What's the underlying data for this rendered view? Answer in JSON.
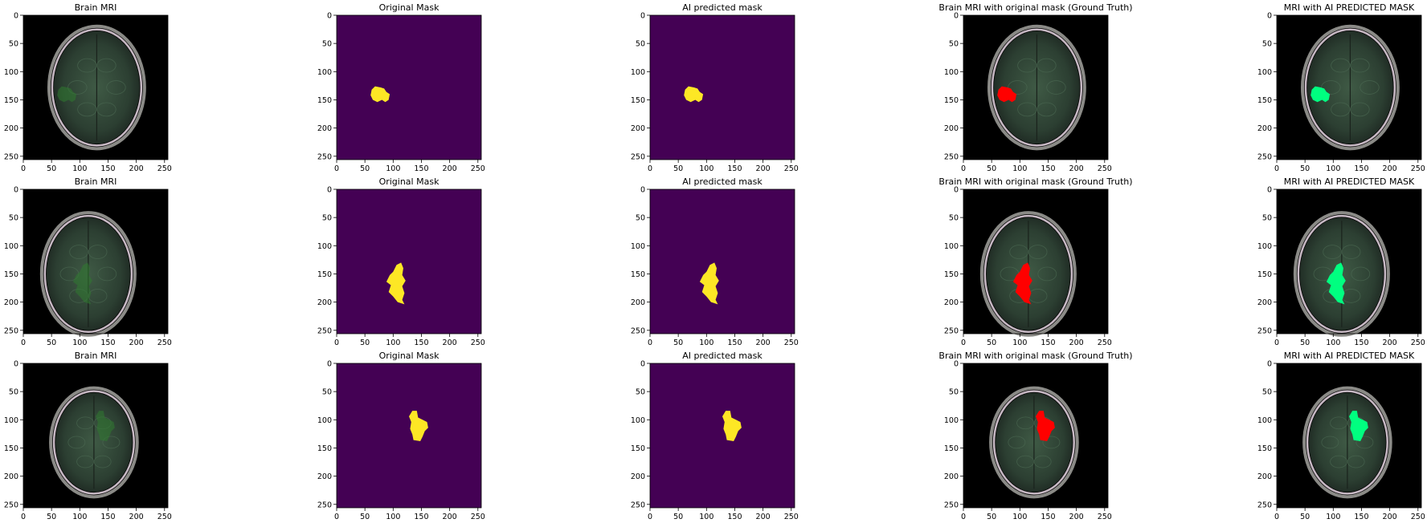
{
  "figure": {
    "axis_ticks": [
      "0",
      "50",
      "100",
      "150",
      "200",
      "250"
    ],
    "image_size": 256,
    "colors": {
      "background": "#000000",
      "mask_background": "#440154",
      "mask_foreground": "#fde725",
      "ground_truth_overlay": "#ff0000",
      "predicted_overlay": "#00ff80",
      "mri_tumor_tint": "#2f7a2f"
    },
    "rows": [
      {
        "panels": [
          {
            "title": "Brain MRI",
            "kind": "mri"
          },
          {
            "title": "Original Mask",
            "kind": "mask"
          },
          {
            "title": "AI predicted mask",
            "kind": "mask_pred"
          },
          {
            "title": "Brain MRI with original mask (Ground Truth)",
            "kind": "overlay_gt"
          },
          {
            "title": "MRI with AI PREDICTED MASK",
            "kind": "overlay_pred"
          }
        ]
      },
      {
        "panels": [
          {
            "title": "Brain MRI",
            "kind": "mri"
          },
          {
            "title": "Original Mask",
            "kind": "mask"
          },
          {
            "title": "AI predicted mask",
            "kind": "mask_pred"
          },
          {
            "title": "Brain MRI with original mask (Ground Truth)",
            "kind": "overlay_gt"
          },
          {
            "title": "MRI with AI PREDICTED MASK",
            "kind": "overlay_pred"
          }
        ]
      },
      {
        "panels": [
          {
            "title": "Brain MRI",
            "kind": "mri"
          },
          {
            "title": "Original Mask",
            "kind": "mask"
          },
          {
            "title": "AI predicted mask",
            "kind": "mask_pred"
          },
          {
            "title": "Brain MRI with original mask (Ground Truth)",
            "kind": "overlay_gt"
          },
          {
            "title": "MRI with AI PREDICTED MASK",
            "kind": "overlay_pred"
          }
        ]
      }
    ]
  }
}
